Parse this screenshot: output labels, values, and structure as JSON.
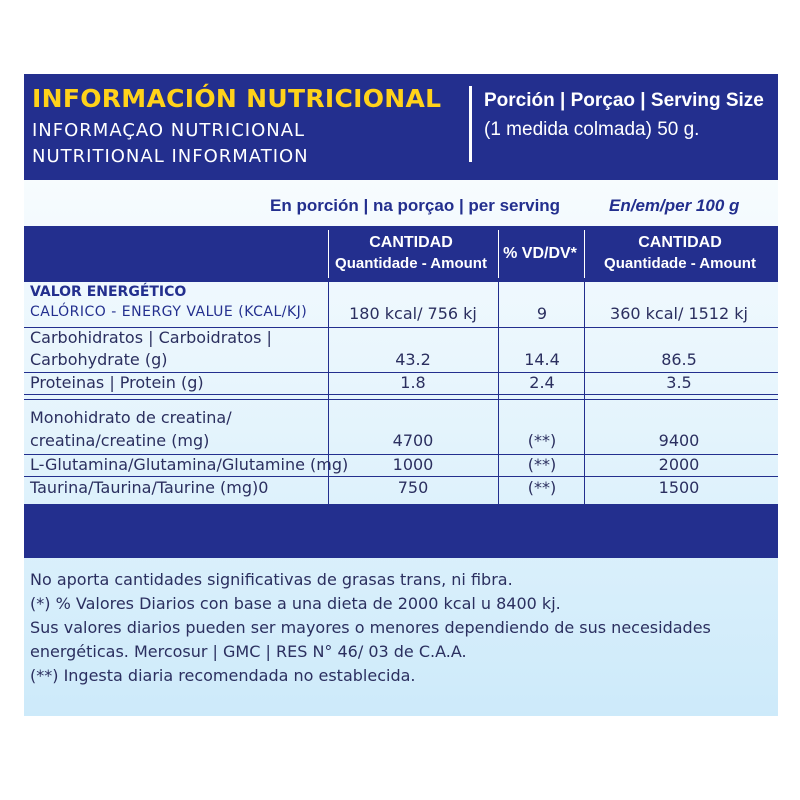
{
  "header": {
    "title_es": "INFORMACIÓN NUTRICIONAL",
    "title_pt": "INFORMAÇAO NUTRICIONAL",
    "title_en": "NUTRITIONAL INFORMATION",
    "serving_label": "Porción | Porçao | Serving Size",
    "serving_value": "(1 medida colmada) 50 g."
  },
  "columns": {
    "per_serving": "En porción | na porçao | per serving",
    "per_100": "En/em/per 100 g",
    "amount_title": "CANTIDAD",
    "amount_sub": "Quantidade - Amount",
    "vd": "% VD/DV*",
    "amount100_title": "CANTIDAD",
    "amount100_sub": "Quantidade - Amount"
  },
  "section_energy": "VALOR ENERGÉTICO",
  "rows": [
    {
      "label": "CALÓRICO - ENERGY VALUE (KCAL/KJ)",
      "serving": "180 kcal/ 756 kj",
      "vd": "9",
      "per100": "360 kcal/ 1512 kj"
    },
    {
      "label": "Carbohidratos | Carboidratos |",
      "label2": "Carbohydrate (g)",
      "serving": "43.2",
      "vd": "14.4",
      "per100": "86.5"
    },
    {
      "label": "Proteinas | Protein (g)",
      "serving": "1.8",
      "vd": "2.4",
      "per100": "3.5"
    },
    {
      "label": "Monohidrato de creatina/",
      "label2": "creatina/creatine (mg)",
      "serving": "4700",
      "vd": "(**)",
      "per100": "9400"
    },
    {
      "label": "L-Glutamina/Glutamina/Glutamine (mg)",
      "serving": "1000",
      "vd": "(**)",
      "per100": "2000"
    },
    {
      "label": "Taurina/Taurina/Taurine (mg)0",
      "serving": "750",
      "vd": "(**)",
      "per100": "1500"
    }
  ],
  "notes": [
    "No aporta cantidades significativas de grasas trans, ni fibra.",
    "(*) % Valores Diarios con base a una dieta de 2000 kcal u 8400 kj.",
    "Sus valores diarios pueden ser mayores o menores dependiendo de sus necesidades",
    "energéticas. Mercosur | GMC | RES N° 46/ 03 de C.A.A.",
    "(**) Ingesta diaria recomendada no establecida."
  ],
  "colors": {
    "navy": "#232f8e",
    "yellow": "#ffd21a",
    "light_blue": "#cdeafa"
  }
}
